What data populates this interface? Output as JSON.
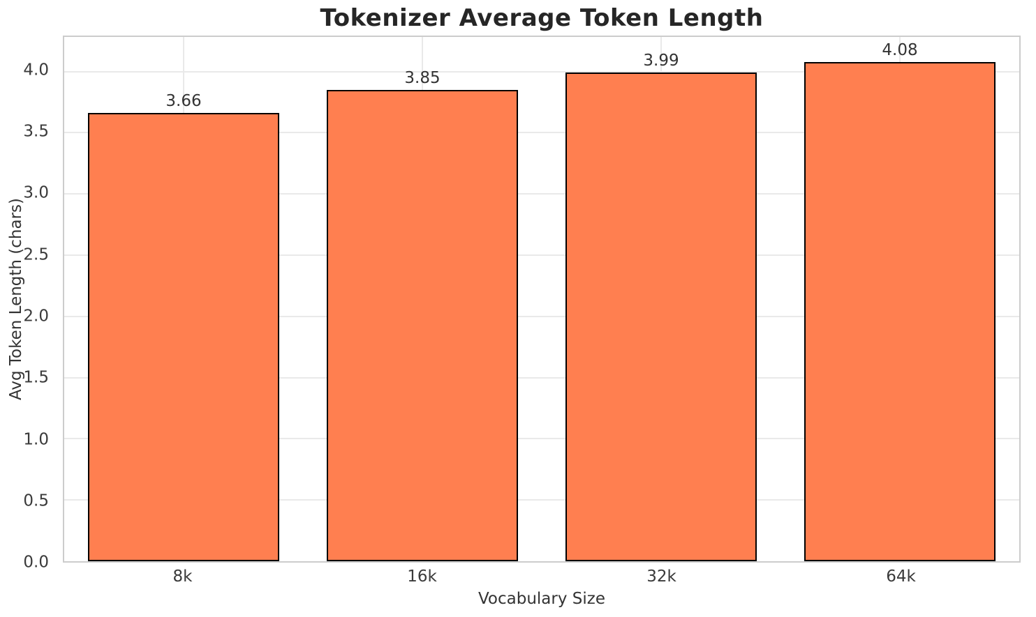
{
  "chart_data": {
    "type": "bar",
    "title": "Tokenizer Average Token Length",
    "xlabel": "Vocabulary Size",
    "ylabel": "Avg Token Length (chars)",
    "categories": [
      "8k",
      "16k",
      "32k",
      "64k"
    ],
    "values": [
      3.66,
      3.85,
      3.99,
      4.08
    ],
    "value_labels": [
      "3.66",
      "3.85",
      "3.99",
      "4.08"
    ],
    "ytick_values": [
      0.0,
      0.5,
      1.0,
      1.5,
      2.0,
      2.5,
      3.0,
      3.5,
      4.0
    ],
    "ytick_labels": [
      "0.0",
      "0.5",
      "1.0",
      "1.5",
      "2.0",
      "2.5",
      "3.0",
      "3.5",
      "4.0"
    ],
    "ylim": [
      0,
      4.283
    ],
    "grid": true,
    "legend": "none",
    "bar_width_frac": 0.8,
    "colors": {
      "bar_fill": "#FF7F50",
      "bar_edge": "#000000",
      "gridline": "#e9e9e9",
      "spine": "#cccccc",
      "title_text": "#262626",
      "tick_text": "#3a3a3a",
      "label_text": "#333333",
      "background": "#ffffff"
    }
  }
}
